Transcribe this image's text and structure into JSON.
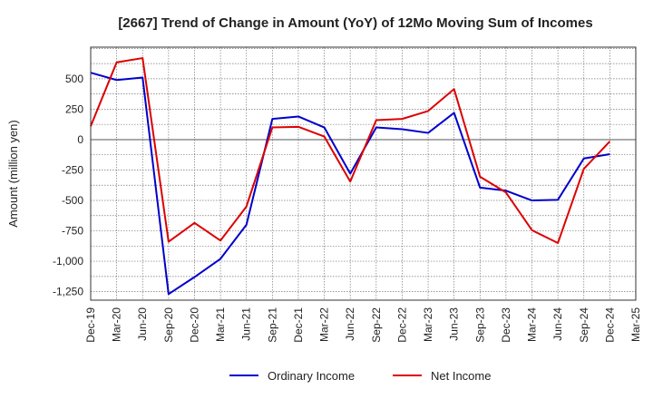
{
  "chart_data": {
    "type": "line",
    "title": "[2667]  Trend of Change in Amount (YoY) of 12Mo Moving Sum of Incomes",
    "xlabel": "",
    "ylabel": "Amount (million yen)",
    "x": [
      "Dec-19",
      "Mar-20",
      "Jun-20",
      "Sep-20",
      "Dec-20",
      "Mar-21",
      "Jun-21",
      "Sep-21",
      "Dec-21",
      "Mar-22",
      "Jun-22",
      "Sep-22",
      "Dec-22",
      "Mar-23",
      "Jun-23",
      "Sep-23",
      "Dec-23",
      "Mar-24",
      "Jun-24",
      "Sep-24",
      "Dec-24",
      "Mar-25"
    ],
    "ylim": [
      -1320,
      760
    ],
    "yticks": [
      500,
      250,
      0,
      -250,
      -500,
      -750,
      -1000,
      -1250
    ],
    "ytick_labels": [
      "500",
      "250",
      "0",
      "-250",
      "-500",
      "-750",
      "-1,000",
      "-1,250"
    ],
    "grid": true,
    "legend_position": "bottom",
    "series": [
      {
        "name": "Ordinary Income",
        "color": "#0000cc",
        "values": [
          550,
          490,
          510,
          -1270,
          -1130,
          -980,
          -700,
          170,
          190,
          100,
          -280,
          100,
          85,
          55,
          220,
          -395,
          -420,
          -500,
          -495,
          -155,
          -120,
          null
        ]
      },
      {
        "name": "Net Income",
        "color": "#dd0000",
        "values": [
          110,
          635,
          670,
          -840,
          -685,
          -830,
          -550,
          100,
          105,
          25,
          -345,
          160,
          170,
          235,
          415,
          -305,
          -435,
          -745,
          -850,
          -240,
          -15,
          null
        ]
      }
    ]
  }
}
